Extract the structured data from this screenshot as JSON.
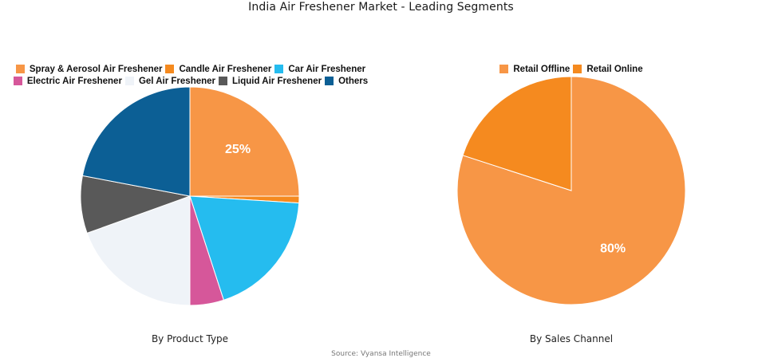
{
  "title": "India Air Freshener Market - Leading Segments",
  "source": "Source: Vyansa Intelligence",
  "chart_data": [
    {
      "type": "pie",
      "title": "By Product Type",
      "legend_position": "top",
      "categories": [
        "Spray & Aerosol Air Freshener",
        "Candle Air Freshener",
        "Car Air Freshener",
        "Electric Air Freshener",
        "Gel Air Freshener",
        "Liquid Air Freshener",
        "Others"
      ],
      "values": [
        25,
        1,
        19,
        5,
        19.5,
        8.5,
        22
      ],
      "colors": [
        "#f79646",
        "#f58a1f",
        "#25bcef",
        "#d6579a",
        "#eff3f8",
        "#595959",
        "#0c5f95"
      ],
      "data_labels": [
        "25%",
        "",
        "",
        "",
        "",
        "",
        ""
      ],
      "start_angle_deg": 0,
      "direction": "clockwise"
    },
    {
      "type": "pie",
      "title": "By Sales Channel",
      "legend_position": "top",
      "categories": [
        "Retail Offline",
        "Retail Online"
      ],
      "values": [
        80,
        20
      ],
      "colors": [
        "#f79646",
        "#f58a1f"
      ],
      "data_labels": [
        "80%",
        ""
      ],
      "start_angle_deg": 0,
      "direction": "clockwise"
    }
  ],
  "legend_left": {
    "rows": [
      [
        0,
        1,
        2
      ],
      [
        3,
        4,
        5,
        6
      ]
    ]
  },
  "legend_right": {
    "rows": [
      [
        0,
        1
      ]
    ]
  }
}
